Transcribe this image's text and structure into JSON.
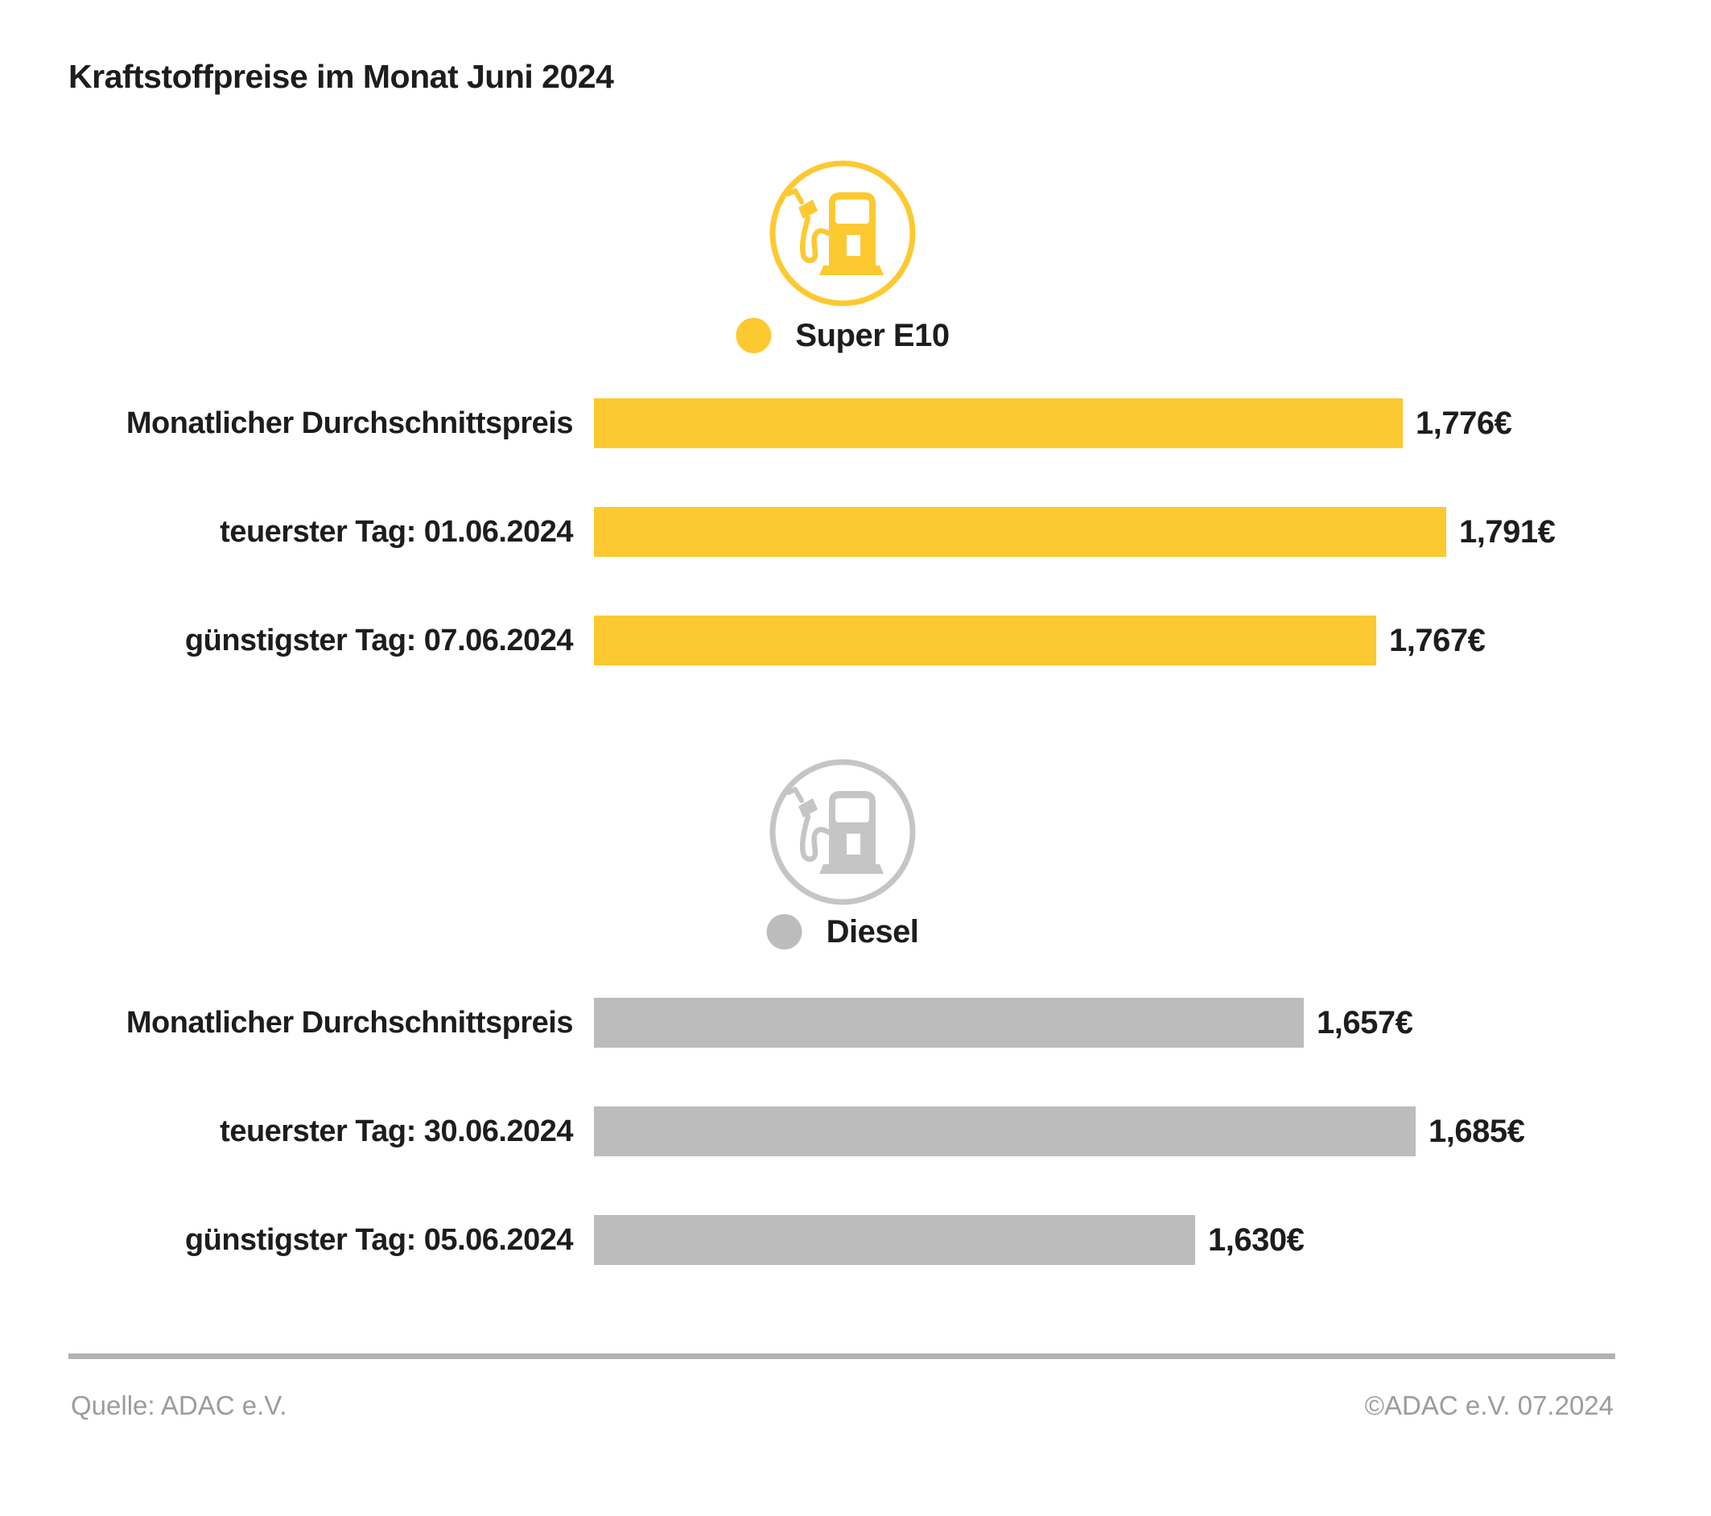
{
  "title": "Kraftstoffpreise im Monat Juni 2024",
  "colors": {
    "super_e10_yellow": "#FDC930",
    "diesel_bar_gray": "#BDBCBC",
    "diesel_icon_gray": "#C6C5C5",
    "text_dark": "#1D1D1B",
    "footer_gray": "#9C9C9B",
    "divider_gray": "#B2B2B2"
  },
  "chart_data": [
    {
      "type": "bar",
      "orientation": "horizontal",
      "group_label": "Super E10",
      "icon": "fuel-pump-icon",
      "bar_color": "#FDC930",
      "categories": [
        "Monatlicher Durchschnittspreis",
        "teuerster Tag: 01.06.2024",
        "günstigster Tag: 07.06.2024"
      ],
      "values": [
        1.776,
        1.791,
        1.767
      ],
      "value_labels": [
        "1,776€",
        "1,791€",
        "1,767€"
      ],
      "xlim": [
        1.5,
        1.8
      ],
      "grid": false,
      "legend_position": "top-center"
    },
    {
      "type": "bar",
      "orientation": "horizontal",
      "group_label": "Diesel",
      "icon": "fuel-pump-icon",
      "bar_color": "#BDBCBC",
      "categories": [
        "Monatlicher Durchschnittspreis",
        "teuerster Tag: 30.06.2024",
        "günstigster Tag: 05.06.2024"
      ],
      "values": [
        1.657,
        1.685,
        1.63
      ],
      "value_labels": [
        "1,657€",
        "1,685€",
        "1,630€"
      ],
      "xlim": [
        1.48,
        1.7
      ],
      "grid": false,
      "legend_position": "top-center"
    }
  ],
  "footer": {
    "source": "Quelle: ADAC e.V.",
    "copyright": "©ADAC e.V. 07.2024"
  }
}
